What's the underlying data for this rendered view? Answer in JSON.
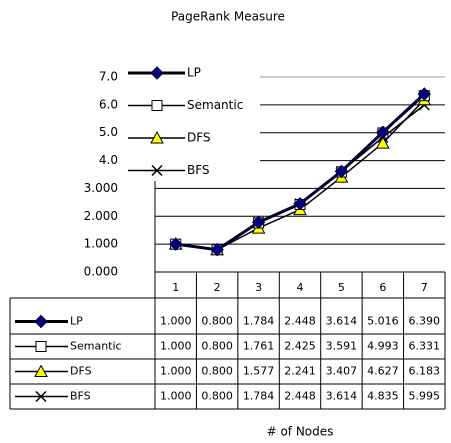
{
  "chart_data": {
    "type": "line",
    "title": "PageRank Measure",
    "x_label": "# of Nodes",
    "categories": [
      "1",
      "2",
      "3",
      "4",
      "5",
      "6",
      "7"
    ],
    "series": [
      {
        "name": "LP",
        "color": "#000080",
        "marker": "diamond",
        "values": [
          1,
          0.8,
          1.784,
          2.448,
          3.614,
          5.016,
          6.39
        ],
        "value_labels": [
          "1.000",
          "0.800",
          "1.784",
          "2.448",
          "3.614",
          "5.016",
          "6.390"
        ]
      },
      {
        "name": "Semantic",
        "color": "#ffffff",
        "marker": "square",
        "values": [
          1,
          0.8,
          1.761,
          2.425,
          3.591,
          4.993,
          6.331
        ],
        "value_labels": [
          "1.000",
          "0.800",
          "1.761",
          "2.425",
          "3.591",
          "4.993",
          "6.331"
        ]
      },
      {
        "name": "DFS",
        "color": "#ffff00",
        "marker": "triangle",
        "values": [
          1,
          0.8,
          1.577,
          2.241,
          3.407,
          4.627,
          6.183
        ],
        "value_labels": [
          "1.000",
          "0.800",
          "1.577",
          "2.241",
          "3.407",
          "4.627",
          "6.183"
        ]
      },
      {
        "name": "BFS",
        "color": "#000000",
        "marker": "x",
        "values": [
          1,
          0.8,
          1.784,
          2.448,
          3.614,
          4.835,
          5.995
        ],
        "value_labels": [
          "1.000",
          "0.800",
          "1.784",
          "2.448",
          "3.614",
          "4.835",
          "5.995"
        ]
      }
    ],
    "ylim": [
      0,
      7
    ],
    "yticks": [
      {
        "value": 0,
        "label": "0.000"
      },
      {
        "value": 1,
        "label": "1.000"
      },
      {
        "value": 2,
        "label": "2.000"
      },
      {
        "value": 3,
        "label": "3.000"
      },
      {
        "value": 4,
        "label": "4.0"
      },
      {
        "value": 5,
        "label": "5.0"
      },
      {
        "value": 6,
        "label": "6.0"
      },
      {
        "value": 7,
        "label": "7.0"
      }
    ],
    "grid": true,
    "legend": "upper left",
    "data_table": true
  }
}
